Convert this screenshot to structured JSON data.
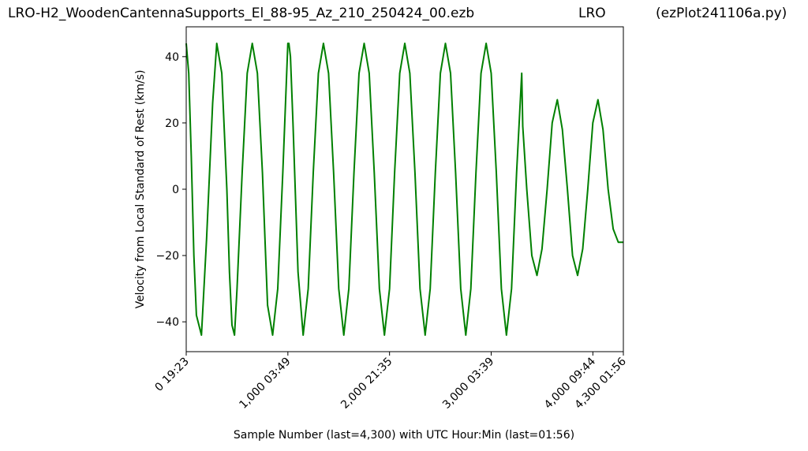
{
  "header": {
    "left": "LRO-H2_WoodenCantennaSupports_El_88-95_Az_210_250424_00.ezb",
    "middle": "LRO",
    "right": "(ezPlot241106a.py)"
  },
  "chart_data": {
    "type": "line",
    "title": "",
    "xlabel": "Sample Number (last=4,300) with UTC Hour:Min (last=01:56)",
    "ylabel": "Velocity from Local Standard of Rest (km/s)",
    "xlim": [
      0,
      4300
    ],
    "ylim": [
      -49,
      49
    ],
    "grid": false,
    "legend": "none",
    "color": "#008000",
    "x_ticks": [
      {
        "value": 0,
        "label": "0  19:23"
      },
      {
        "value": 1000,
        "label": "1,000  03:49"
      },
      {
        "value": 2000,
        "label": "2,000  21:35"
      },
      {
        "value": 3000,
        "label": "3,000  03:39"
      },
      {
        "value": 4000,
        "label": "4,000  09:44"
      },
      {
        "value": 4300,
        "label": "4,300  01:56"
      }
    ],
    "y_ticks": [
      {
        "value": 40,
        "label": "40"
      },
      {
        "value": 20,
        "label": "20"
      },
      {
        "value": 0,
        "label": "0"
      },
      {
        "value": -20,
        "label": "−20"
      },
      {
        "value": -40,
        "label": "−40"
      }
    ],
    "series": [
      {
        "x": [
          0,
          25,
          50,
          75,
          100,
          150,
          200,
          260,
          300,
          350,
          400,
          425,
          450,
          475,
          500,
          550,
          600,
          650,
          700,
          725,
          750,
          775,
          800,
          850,
          900,
          950,
          1000,
          1010,
          1025,
          1050,
          1100,
          1150,
          1200,
          1250,
          1300,
          1350,
          1400,
          1450,
          1500,
          1550,
          1600,
          1650,
          1700,
          1750,
          1800,
          1850,
          1900,
          1950,
          2000,
          2050,
          2100,
          2150,
          2200,
          2250,
          2300,
          2350,
          2400,
          2450,
          2500,
          2550,
          2600,
          2650,
          2700,
          2750,
          2800,
          2850,
          2900,
          2950,
          3000,
          3050,
          3100,
          3150,
          3200,
          3250,
          3300,
          3310,
          3350,
          3400,
          3450,
          3500,
          3550,
          3600,
          3650,
          3700,
          3750,
          3800,
          3850,
          3900,
          3950,
          4000,
          4050,
          4100,
          4150,
          4200,
          4250,
          4300
        ],
        "y": [
          44,
          35,
          10,
          -20,
          -38,
          -44,
          -15,
          26,
          44,
          35,
          0,
          -25,
          -41,
          -44,
          -30,
          5,
          35,
          44,
          35,
          20,
          5,
          -15,
          -35,
          -44,
          -30,
          5,
          44,
          44,
          40,
          20,
          -25,
          -44,
          -30,
          5,
          35,
          44,
          35,
          5,
          -30,
          -44,
          -30,
          5,
          35,
          44,
          35,
          5,
          -30,
          -44,
          -30,
          5,
          35,
          44,
          35,
          5,
          -30,
          -44,
          -30,
          5,
          35,
          44,
          35,
          5,
          -30,
          -44,
          -30,
          5,
          35,
          44,
          35,
          5,
          -30,
          -44,
          -30,
          5,
          35,
          19,
          0,
          -20,
          -26,
          -18,
          0,
          20,
          27,
          18,
          0,
          -20,
          -26,
          -18,
          0,
          20,
          27,
          18,
          0,
          -12,
          -16,
          -16
        ]
      }
    ]
  }
}
